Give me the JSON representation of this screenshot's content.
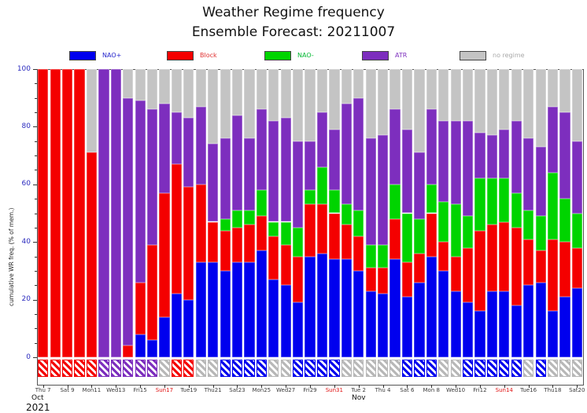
{
  "title": {
    "line1": "Weather Regime frequency",
    "line2": "Ensemble Forecast: 20211007"
  },
  "legend": [
    {
      "label": "NAO+",
      "color": "#0000ee",
      "text_color": "#2222cc"
    },
    {
      "label": "Block",
      "color": "#f40000",
      "text_color": "#e03030"
    },
    {
      "label": "NAO-",
      "color": "#00d400",
      "text_color": "#00b830"
    },
    {
      "label": "ATR",
      "color": "#7d2ebe",
      "text_color": "#7d2ebe"
    },
    {
      "label": "no regime",
      "color": "#c4c4c4",
      "text_color": "#a8a8a8"
    }
  ],
  "y_axis": {
    "label": "cumulative WR freq. (% of mem.)",
    "tick_labels": [
      "0",
      "20",
      "40",
      "60",
      "80",
      "100"
    ],
    "tick_values": [
      0,
      20,
      40,
      60,
      80,
      100
    ],
    "minor_step": 5
  },
  "x_axis": {
    "month_label_1": "Oct",
    "year_label": "2021",
    "month_label_2": "Nov",
    "ticks": [
      {
        "index": 0,
        "label": "Thu 7",
        "red": false
      },
      {
        "index": 2,
        "label": "Sat 9",
        "red": false
      },
      {
        "index": 4,
        "label": "Mon11",
        "red": false
      },
      {
        "index": 6,
        "label": "Wed13",
        "red": false
      },
      {
        "index": 8,
        "label": "Fri15",
        "red": false
      },
      {
        "index": 10,
        "label": "Sun17",
        "red": true
      },
      {
        "index": 12,
        "label": "Tue19",
        "red": false
      },
      {
        "index": 14,
        "label": "Thu21",
        "red": false
      },
      {
        "index": 16,
        "label": "Sat23",
        "red": false
      },
      {
        "index": 18,
        "label": "Mon25",
        "red": false
      },
      {
        "index": 20,
        "label": "Wed27",
        "red": false
      },
      {
        "index": 22,
        "label": "Fri29",
        "red": false
      },
      {
        "index": 24,
        "label": "Sun31",
        "red": true
      },
      {
        "index": 26,
        "label": "Tue 2",
        "red": false
      },
      {
        "index": 28,
        "label": "Thu 4",
        "red": false
      },
      {
        "index": 30,
        "label": "Sat 6",
        "red": false
      },
      {
        "index": 32,
        "label": "Mon 8",
        "red": false
      },
      {
        "index": 34,
        "label": "Wed10",
        "red": false
      },
      {
        "index": 36,
        "label": "Fri12",
        "red": false
      },
      {
        "index": 38,
        "label": "Sun14",
        "red": true
      },
      {
        "index": 40,
        "label": "Tue16",
        "red": false
      },
      {
        "index": 42,
        "label": "Thu18",
        "red": false
      },
      {
        "index": 44,
        "label": "Sat20",
        "red": false
      }
    ]
  },
  "chart_data": {
    "type": "bar",
    "stacked": true,
    "ylim": [
      0,
      100
    ],
    "ylabel": "cumulative WR freq. (% of mem.)",
    "categories": [
      "Oct 7",
      "Oct 8",
      "Oct 9",
      "Oct 10",
      "Oct 11",
      "Oct 12",
      "Oct 13",
      "Oct 14",
      "Oct 15",
      "Oct 16",
      "Oct 17",
      "Oct 18",
      "Oct 19",
      "Oct 20",
      "Oct 21",
      "Oct 22",
      "Oct 23",
      "Oct 24",
      "Oct 25",
      "Oct 26",
      "Oct 27",
      "Oct 28",
      "Oct 29",
      "Oct 30",
      "Oct 31",
      "Nov 1",
      "Nov 2",
      "Nov 3",
      "Nov 4",
      "Nov 5",
      "Nov 6",
      "Nov 7",
      "Nov 8",
      "Nov 9",
      "Nov 10",
      "Nov 11",
      "Nov 12",
      "Nov 13",
      "Nov 14",
      "Nov 15",
      "Nov 16",
      "Nov 17",
      "Nov 18",
      "Nov 19",
      "Nov 20"
    ],
    "series": [
      {
        "name": "NAO+",
        "color": "#0000ee",
        "values": [
          0,
          0,
          0,
          0,
          0,
          0,
          0,
          0,
          8,
          6,
          14,
          22,
          20,
          33,
          33,
          30,
          33,
          33,
          37,
          27,
          25,
          19,
          35,
          36,
          34,
          34,
          30,
          23,
          22,
          34,
          21,
          26,
          35,
          30,
          23,
          19,
          16,
          23,
          23,
          18,
          25,
          26,
          16,
          21,
          24
        ]
      },
      {
        "name": "Block",
        "color": "#f40000",
        "values": [
          100,
          100,
          100,
          100,
          71,
          0,
          0,
          4,
          18,
          33,
          43,
          45,
          39,
          27,
          14,
          14,
          12,
          13,
          12,
          15,
          14,
          16,
          18,
          17,
          16,
          12,
          12,
          8,
          9,
          14,
          12,
          10,
          15,
          10,
          12,
          19,
          28,
          23,
          24,
          27,
          16,
          11,
          25,
          19,
          14
        ]
      },
      {
        "name": "NAO-",
        "color": "#00d400",
        "values": [
          0,
          0,
          0,
          0,
          0,
          0,
          0,
          0,
          0,
          0,
          0,
          0,
          0,
          0,
          0,
          4,
          6,
          5,
          9,
          5,
          8,
          10,
          5,
          13,
          8,
          7,
          9,
          8,
          8,
          12,
          17,
          12,
          10,
          14,
          18,
          11,
          18,
          16,
          15,
          12,
          10,
          12,
          23,
          15,
          12
        ]
      },
      {
        "name": "ATR",
        "color": "#7d2ebe",
        "values": [
          0,
          0,
          0,
          0,
          0,
          100,
          100,
          86,
          63,
          47,
          31,
          18,
          24,
          27,
          27,
          28,
          33,
          25,
          28,
          35,
          36,
          30,
          17,
          19,
          21,
          35,
          39,
          37,
          38,
          26,
          29,
          23,
          26,
          28,
          29,
          33,
          16,
          15,
          17,
          25,
          25,
          24,
          23,
          30,
          25
        ]
      },
      {
        "name": "no regime",
        "color": "#c4c4c4",
        "values": [
          0,
          0,
          0,
          0,
          29,
          0,
          0,
          10,
          11,
          14,
          12,
          15,
          17,
          13,
          26,
          24,
          16,
          24,
          14,
          18,
          17,
          25,
          25,
          15,
          21,
          12,
          10,
          24,
          23,
          14,
          21,
          29,
          14,
          18,
          18,
          18,
          22,
          23,
          21,
          18,
          24,
          27,
          13,
          15,
          25
        ]
      }
    ],
    "dominant_regime_boxes": [
      "Block",
      "Block",
      "Block",
      "Block",
      "Block",
      "ATR",
      "ATR",
      "ATR",
      "ATR",
      "ATR",
      "none",
      "Block",
      "Block",
      "none",
      "none",
      "NAO+",
      "NAO+",
      "NAO+",
      "NAO+",
      "none",
      "none",
      "NAO+",
      "NAO+",
      "NAO+",
      "NAO+",
      "none",
      "none",
      "none",
      "none",
      "none",
      "NAO+",
      "NAO+",
      "NAO+",
      "none",
      "none",
      "NAO+",
      "NAO+",
      "NAO+",
      "NAO+",
      "NAO+",
      "none",
      "NAO+",
      "none",
      "none",
      "none"
    ],
    "box_colors": {
      "NAO+": "#0000ee",
      "Block": "#f40000",
      "NAO-": "#00d400",
      "ATR": "#7d2ebe",
      "none": "#b8b8b8"
    },
    "legend_position": "top",
    "grid": false
  }
}
